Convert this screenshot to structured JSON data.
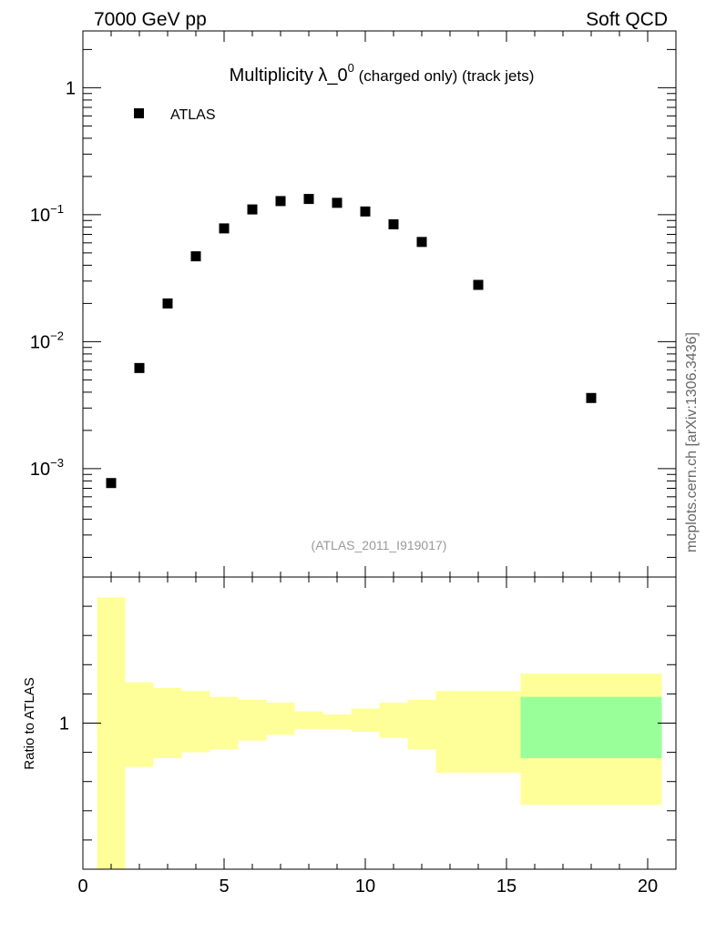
{
  "header": {
    "left": "7000 GeV pp",
    "right": "Soft QCD"
  },
  "title": {
    "main": "Multiplicity λ_0",
    "superscript": "0",
    "suffix": " (charged only) (track jets)"
  },
  "legend": {
    "label": "ATLAS",
    "position": "top-left"
  },
  "watermark": "(ATLAS_2011_I919017)",
  "side_label": "mcplots.cern.ch [arXiv:1306.3436]",
  "ratio_ylabel": "Ratio to ATLAS",
  "colors": {
    "marker": "#000000",
    "band_yellow": "#ffff99",
    "band_green": "#99ff99",
    "watermark": "#999999",
    "side_label": "#666666"
  },
  "chart_data": [
    {
      "type": "scatter",
      "panel": "main",
      "yscale": "log",
      "xlim": [
        0,
        21
      ],
      "ylim": [
        0.00014,
        2.8
      ],
      "y_tick_labels": [
        {
          "v": 1,
          "base": "1",
          "exp": ""
        },
        {
          "v": 0.1,
          "base": "10",
          "exp": "−1"
        },
        {
          "v": 0.01,
          "base": "10",
          "exp": "−2"
        },
        {
          "v": 0.001,
          "base": "10",
          "exp": "−3"
        }
      ],
      "series": [
        {
          "name": "ATLAS",
          "x": [
            1,
            2,
            3,
            4,
            5,
            6,
            7,
            8,
            9,
            10,
            11,
            12,
            14,
            18
          ],
          "y": [
            0.00077,
            0.0062,
            0.02,
            0.047,
            0.078,
            0.11,
            0.128,
            0.133,
            0.124,
            0.106,
            0.084,
            0.061,
            0.028,
            0.0036
          ]
        }
      ]
    },
    {
      "type": "area",
      "panel": "ratio",
      "xlim": [
        0,
        21
      ],
      "ylim": [
        0.5,
        1.5
      ],
      "x_tick_labels": [
        "0",
        "5",
        "10",
        "15",
        "20"
      ],
      "x_tick_values": [
        0,
        5,
        10,
        15,
        20
      ],
      "y_tick_labels": [
        "1"
      ],
      "y_tick_values": [
        1
      ],
      "bands": [
        {
          "x0": 0.5,
          "x1": 1.5,
          "lo": 0.5,
          "hi": 1.43,
          "color": "yellow"
        },
        {
          "x0": 1.5,
          "x1": 2.5,
          "lo": 0.85,
          "hi": 1.14,
          "color": "yellow"
        },
        {
          "x0": 2.5,
          "x1": 3.5,
          "lo": 0.88,
          "hi": 1.12,
          "color": "yellow"
        },
        {
          "x0": 3.5,
          "x1": 4.5,
          "lo": 0.9,
          "hi": 1.11,
          "color": "yellow"
        },
        {
          "x0": 4.5,
          "x1": 5.5,
          "lo": 0.91,
          "hi": 1.09,
          "color": "yellow"
        },
        {
          "x0": 5.5,
          "x1": 6.5,
          "lo": 0.94,
          "hi": 1.08,
          "color": "yellow"
        },
        {
          "x0": 6.5,
          "x1": 7.5,
          "lo": 0.96,
          "hi": 1.07,
          "color": "yellow"
        },
        {
          "x0": 7.5,
          "x1": 8.5,
          "lo": 0.98,
          "hi": 1.04,
          "color": "yellow"
        },
        {
          "x0": 8.5,
          "x1": 9.5,
          "lo": 0.98,
          "hi": 1.03,
          "color": "yellow"
        },
        {
          "x0": 9.5,
          "x1": 10.5,
          "lo": 0.97,
          "hi": 1.05,
          "color": "yellow"
        },
        {
          "x0": 10.5,
          "x1": 11.5,
          "lo": 0.95,
          "hi": 1.07,
          "color": "yellow"
        },
        {
          "x0": 11.5,
          "x1": 12.5,
          "lo": 0.91,
          "hi": 1.08,
          "color": "yellow"
        },
        {
          "x0": 12.5,
          "x1": 15.5,
          "lo": 0.83,
          "hi": 1.11,
          "color": "yellow"
        },
        {
          "x0": 15.5,
          "x1": 20.5,
          "lo": 0.72,
          "hi": 1.17,
          "color": "yellow"
        },
        {
          "x0": 15.5,
          "x1": 20.5,
          "lo": 0.88,
          "hi": 1.09,
          "color": "green"
        }
      ]
    }
  ]
}
